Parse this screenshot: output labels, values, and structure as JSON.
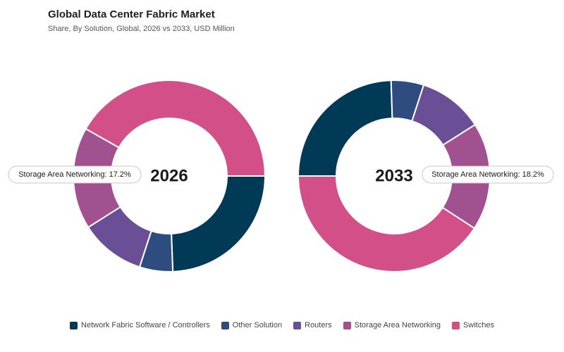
{
  "header": {
    "title": "Global Data Center Fabric Market",
    "subtitle": "Share, By Solution, Global, 2026 vs 2033, USD Million"
  },
  "chart_data": {
    "type": "pie",
    "variant": "donut",
    "categories": [
      "Network Fabric Software / Controllers",
      "Other Solution",
      "Routers",
      "Storage Area Networking",
      "Switches"
    ],
    "colors": [
      "#013a57",
      "#2f4c80",
      "#6b4f96",
      "#a1518f",
      "#d24f88"
    ],
    "charts": [
      {
        "center_label": "2026",
        "values": [
          24.4,
          5.6,
          11.0,
          17.2,
          41.8
        ],
        "callout": {
          "category": "Storage Area Networking",
          "text": "Storage Area Networking: 17.2%"
        }
      },
      {
        "center_label": "2033",
        "values": [
          24.5,
          5.5,
          11.0,
          18.2,
          40.8
        ],
        "callout": {
          "category": "Storage Area Networking",
          "text": "Storage Area Networking: 18.2%"
        }
      }
    ],
    "legend_position": "bottom"
  }
}
